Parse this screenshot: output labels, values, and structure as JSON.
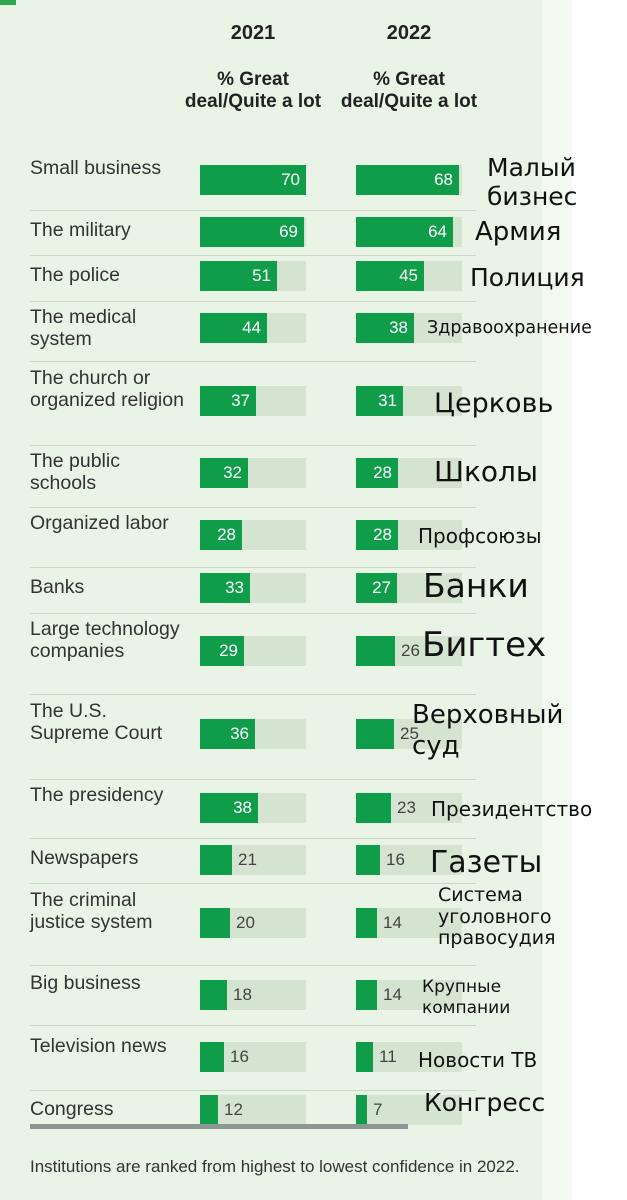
{
  "chart_data": {
    "type": "bar",
    "columns": [
      {
        "year": "2021",
        "subheader": "% Great deal/Quite a lot"
      },
      {
        "year": "2022",
        "subheader": "% Great deal/Quite a lot"
      }
    ],
    "xlim": [
      0,
      100
    ],
    "categories": [
      "Small business",
      "The military",
      "The police",
      "The medical system",
      "The church or organized religion",
      "The public schools",
      "Organized labor",
      "Banks",
      "Large technology companies",
      "The U.S. Supreme Court",
      "The presidency",
      "Newspapers",
      "The criminal justice system",
      "Big business",
      "Television news",
      "Congress"
    ],
    "series": [
      {
        "name": "2021",
        "values": [
          70,
          69,
          51,
          44,
          37,
          32,
          28,
          33,
          29,
          36,
          38,
          21,
          20,
          18,
          16,
          12
        ]
      },
      {
        "name": "2022",
        "values": [
          68,
          64,
          45,
          38,
          31,
          28,
          28,
          27,
          26,
          25,
          23,
          16,
          14,
          14,
          11,
          7
        ]
      }
    ],
    "translations": [
      "Малый бизнес",
      "Армия",
      "Полиция",
      "Здравоохранение",
      "Церковь",
      "Школы",
      "Профсоюзы",
      "Банки",
      "Бигтех",
      "Верховный суд",
      "Президентство",
      "Газеты",
      "Система уголовного правосудия",
      "Крупные компании",
      "Новости ТВ",
      "Конгресс"
    ],
    "footnote": "Institutions are ranked from highest to lowest confidence in 2022.",
    "colors": {
      "bar": "#0f9d4a",
      "track": "#d5e3d1",
      "panel": "#e9f3e6"
    }
  }
}
